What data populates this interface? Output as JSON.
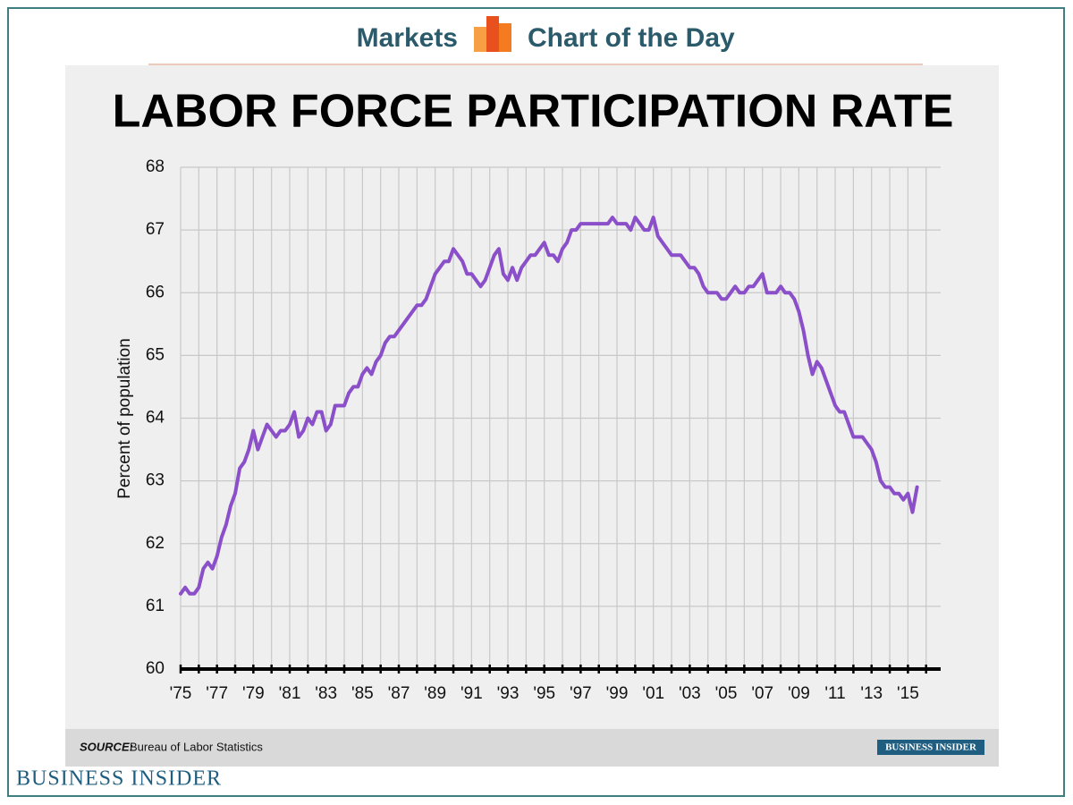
{
  "header": {
    "left": "Markets",
    "right": "Chart of the Day"
  },
  "footer": {
    "brand": "BUSINESS INSIDER"
  },
  "chart_data": {
    "type": "line",
    "title": "LABOR FORCE PARTICIPATION RATE",
    "y_label": "Percent of population",
    "source_label": "SOURCE:",
    "source": "Bureau of Labor Statistics",
    "badge": "BUSINESS INSIDER",
    "xlim": [
      1975,
      2016.8
    ],
    "ylim": [
      60,
      68
    ],
    "yticks": [
      60,
      61,
      62,
      63,
      64,
      65,
      66,
      67,
      68
    ],
    "xticks": [
      {
        "value": 1975,
        "label": "'75"
      },
      {
        "value": 1977,
        "label": "'77"
      },
      {
        "value": 1979,
        "label": "'79"
      },
      {
        "value": 1981,
        "label": "'81"
      },
      {
        "value": 1983,
        "label": "'83"
      },
      {
        "value": 1985,
        "label": "'85"
      },
      {
        "value": 1987,
        "label": "'87"
      },
      {
        "value": 1989,
        "label": "'89"
      },
      {
        "value": 1991,
        "label": "'91"
      },
      {
        "value": 1993,
        "label": "'93"
      },
      {
        "value": 1995,
        "label": "'95"
      },
      {
        "value": 1997,
        "label": "'97"
      },
      {
        "value": 1999,
        "label": "'99"
      },
      {
        "value": 2001,
        "label": "'01"
      },
      {
        "value": 2003,
        "label": "'03"
      },
      {
        "value": 2005,
        "label": "'05"
      },
      {
        "value": 2007,
        "label": "'07"
      },
      {
        "value": 2009,
        "label": "'09"
      },
      {
        "value": 2011,
        "label": "'11"
      },
      {
        "value": 2013,
        "label": "'13"
      },
      {
        "value": 2015,
        "label": "'15"
      }
    ],
    "x_minor_ticks": [
      1976,
      1978,
      1980,
      1982,
      1984,
      1986,
      1988,
      1990,
      1992,
      1994,
      1996,
      1998,
      2000,
      2002,
      2004,
      2006,
      2008,
      2010,
      2012,
      2014,
      2016
    ],
    "grid": true,
    "color": "#8a4fc9",
    "x": [
      1975,
      1975.25,
      1975.5,
      1975.75,
      1976,
      1976.25,
      1976.5,
      1976.75,
      1977,
      1977.25,
      1977.5,
      1977.75,
      1978,
      1978.25,
      1978.5,
      1978.75,
      1979,
      1979.25,
      1979.5,
      1979.75,
      1980,
      1980.25,
      1980.5,
      1980.75,
      1981,
      1981.25,
      1981.5,
      1981.75,
      1982,
      1982.25,
      1982.5,
      1982.75,
      1983,
      1983.25,
      1983.5,
      1983.75,
      1984,
      1984.25,
      1984.5,
      1984.75,
      1985,
      1985.25,
      1985.5,
      1985.75,
      1986,
      1986.25,
      1986.5,
      1986.75,
      1987,
      1987.25,
      1987.5,
      1987.75,
      1988,
      1988.25,
      1988.5,
      1988.75,
      1989,
      1989.25,
      1989.5,
      1989.75,
      1990,
      1990.25,
      1990.5,
      1990.75,
      1991,
      1991.25,
      1991.5,
      1991.75,
      1992,
      1992.25,
      1992.5,
      1992.75,
      1993,
      1993.25,
      1993.5,
      1993.75,
      1994,
      1994.25,
      1994.5,
      1994.75,
      1995,
      1995.25,
      1995.5,
      1995.75,
      1996,
      1996.25,
      1996.5,
      1996.75,
      1997,
      1997.25,
      1997.5,
      1997.75,
      1998,
      1998.25,
      1998.5,
      1998.75,
      1999,
      1999.25,
      1999.5,
      1999.75,
      2000,
      2000.25,
      2000.5,
      2000.75,
      2001,
      2001.25,
      2001.5,
      2001.75,
      2002,
      2002.25,
      2002.5,
      2002.75,
      2003,
      2003.25,
      2003.5,
      2003.75,
      2004,
      2004.25,
      2004.5,
      2004.75,
      2005,
      2005.25,
      2005.5,
      2005.75,
      2006,
      2006.25,
      2006.5,
      2006.75,
      2007,
      2007.25,
      2007.5,
      2007.75,
      2008,
      2008.25,
      2008.5,
      2008.75,
      2009,
      2009.25,
      2009.5,
      2009.75,
      2010,
      2010.25,
      2010.5,
      2010.75,
      2011,
      2011.25,
      2011.5,
      2011.75,
      2012,
      2012.25,
      2012.5,
      2012.75,
      2013,
      2013.25,
      2013.5,
      2013.75,
      2014,
      2014.25,
      2014.5,
      2014.75,
      2015,
      2015.25,
      2015.5
    ],
    "values": [
      61.2,
      61.3,
      61.2,
      61.2,
      61.3,
      61.6,
      61.7,
      61.6,
      61.8,
      62.1,
      62.3,
      62.6,
      62.8,
      63.2,
      63.3,
      63.5,
      63.8,
      63.5,
      63.7,
      63.9,
      63.8,
      63.7,
      63.8,
      63.8,
      63.9,
      64.1,
      63.7,
      63.8,
      64.0,
      63.9,
      64.1,
      64.1,
      63.8,
      63.9,
      64.2,
      64.2,
      64.2,
      64.4,
      64.5,
      64.5,
      64.7,
      64.8,
      64.7,
      64.9,
      65.0,
      65.2,
      65.3,
      65.3,
      65.4,
      65.5,
      65.6,
      65.7,
      65.8,
      65.8,
      65.9,
      66.1,
      66.3,
      66.4,
      66.5,
      66.5,
      66.7,
      66.6,
      66.5,
      66.3,
      66.3,
      66.2,
      66.1,
      66.2,
      66.4,
      66.6,
      66.7,
      66.3,
      66.2,
      66.4,
      66.2,
      66.4,
      66.5,
      66.6,
      66.6,
      66.7,
      66.8,
      66.6,
      66.6,
      66.5,
      66.7,
      66.8,
      67.0,
      67.0,
      67.1,
      67.1,
      67.1,
      67.1,
      67.1,
      67.1,
      67.1,
      67.2,
      67.1,
      67.1,
      67.1,
      67.0,
      67.2,
      67.1,
      67.0,
      67.0,
      67.2,
      66.9,
      66.8,
      66.7,
      66.6,
      66.6,
      66.6,
      66.5,
      66.4,
      66.4,
      66.3,
      66.1,
      66.0,
      66.0,
      66.0,
      65.9,
      65.9,
      66.0,
      66.1,
      66.0,
      66.0,
      66.1,
      66.1,
      66.2,
      66.3,
      66.0,
      66.0,
      66.0,
      66.1,
      66.0,
      66.0,
      65.9,
      65.7,
      65.4,
      65.0,
      64.7,
      64.9,
      64.8,
      64.6,
      64.4,
      64.2,
      64.1,
      64.1,
      63.9,
      63.7,
      63.7,
      63.7,
      63.6,
      63.5,
      63.3,
      63.0,
      62.9,
      62.9,
      62.8,
      62.8,
      62.7,
      62.8,
      62.5,
      62.9
    ]
  }
}
